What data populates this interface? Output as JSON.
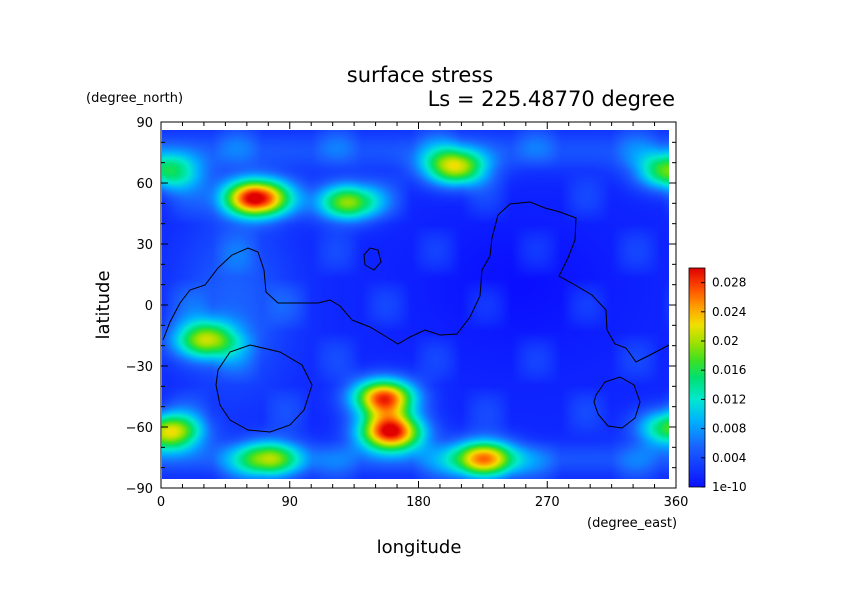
{
  "chart_data": {
    "type": "heatmap",
    "title": "surface stress",
    "subtitle": "Ls = 225.48770 degree",
    "xlabel": "longitude",
    "ylabel": "latitude",
    "x_units": "(degree_east)",
    "y_units": "(degree_north)",
    "xlim": [
      0,
      360
    ],
    "ylim": [
      -90,
      90
    ],
    "x_ticks": [
      "0",
      "90",
      "180",
      "270",
      "360"
    ],
    "x_tick_values": [
      0,
      90,
      180,
      270,
      360
    ],
    "y_ticks": [
      "90",
      "60",
      "30",
      "0",
      "−30",
      "−60",
      "−90"
    ],
    "y_tick_values": [
      90,
      60,
      30,
      0,
      -30,
      -60,
      -90
    ],
    "grid": false,
    "colormap": "rainbow (blue to red)",
    "colorbar": {
      "labels": [
        "0.028",
        "0.024",
        "0.02",
        "0.016",
        "0.012",
        "0.008",
        "0.004",
        "1e-10"
      ],
      "values": [
        0.028,
        0.024,
        0.02,
        0.016,
        0.012,
        0.008,
        0.004,
        1e-10
      ],
      "max": 0.03
    },
    "hotspots": [
      {
        "lon": 65,
        "lat": 52,
        "value": 0.029
      },
      {
        "lon": 160,
        "lat": -62,
        "value": 0.028
      },
      {
        "lon": 155,
        "lat": -45,
        "value": 0.025
      },
      {
        "lon": 225,
        "lat": -75,
        "value": 0.022
      },
      {
        "lon": 205,
        "lat": 67,
        "value": 0.019
      },
      {
        "lon": 130,
        "lat": 50,
        "value": 0.018
      },
      {
        "lon": 355,
        "lat": 65,
        "value": 0.016
      },
      {
        "lon": 5,
        "lat": 65,
        "value": 0.013
      },
      {
        "lon": 30,
        "lat": -17,
        "value": 0.017
      },
      {
        "lon": 5,
        "lat": -62,
        "value": 0.02
      },
      {
        "lon": 355,
        "lat": -60,
        "value": 0.015
      },
      {
        "lon": 75,
        "lat": -75,
        "value": 0.016
      }
    ]
  }
}
